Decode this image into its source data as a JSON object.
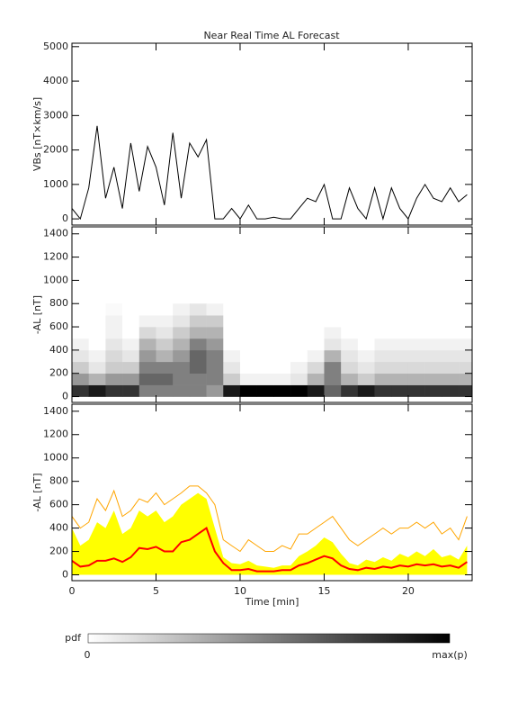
{
  "chart_data": [
    {
      "type": "line",
      "title": "Near Real Time AL Forecast",
      "ylabel": "VBs [nT×km/s]",
      "xlim": [
        0,
        23.8
      ],
      "xticks": [
        0,
        5,
        10,
        15,
        20
      ],
      "show_xtick_labels": false,
      "ylim": [
        -180,
        5100
      ],
      "yticks": [
        0,
        1000,
        2000,
        3000,
        4000,
        5000
      ],
      "color": "#000000",
      "x": [
        0,
        0.5,
        1,
        1.5,
        2,
        2.5,
        3,
        3.5,
        4,
        4.5,
        5,
        5.5,
        6,
        6.5,
        7,
        7.5,
        8,
        8.5,
        9,
        9.5,
        10,
        10.5,
        11,
        11.5,
        12,
        12.5,
        13,
        13.5,
        14,
        14.5,
        15,
        15.5,
        16,
        16.5,
        17,
        17.5,
        18,
        18.5,
        19,
        19.5,
        20,
        20.5,
        21,
        21.5,
        22,
        22.5,
        23,
        23.5
      ],
      "values": [
        300,
        0,
        900,
        2700,
        600,
        1500,
        300,
        2200,
        800,
        2100,
        1500,
        400,
        2500,
        600,
        2200,
        1800,
        2300,
        0,
        0,
        300,
        0,
        400,
        0,
        0,
        50,
        0,
        0,
        300,
        600,
        500,
        1000,
        0,
        0,
        900,
        300,
        0,
        900,
        0,
        900,
        300,
        0,
        600,
        1000,
        600,
        500,
        900,
        500,
        700
      ]
    },
    {
      "type": "heatmap",
      "ylabel": "-AL [nT]",
      "xlim": [
        0,
        23.8
      ],
      "xticks": [
        0,
        5,
        10,
        15,
        20
      ],
      "show_xtick_labels": false,
      "ylim": [
        -50,
        1460
      ],
      "yticks": [
        0,
        200,
        400,
        600,
        800,
        1000,
        1200,
        1400
      ],
      "x_bins": [
        0,
        1,
        2,
        3,
        4,
        5,
        6,
        7,
        8,
        9,
        10,
        11,
        12,
        13,
        14,
        15,
        16,
        17,
        18,
        19,
        20,
        21,
        22,
        23,
        24
      ],
      "y_bins": [
        0,
        100,
        200,
        300,
        400,
        500,
        600,
        700,
        800
      ],
      "z": [
        [
          0.8,
          0.9,
          0.8,
          0.8,
          0.5,
          0.5,
          0.5,
          0.5,
          0.4,
          0.9,
          1,
          1,
          1,
          1,
          0.9,
          0.6,
          0.8,
          0.9,
          0.8,
          0.8,
          0.8,
          0.8,
          0.8,
          0.8
        ],
        [
          0.4,
          0.3,
          0.4,
          0.4,
          0.6,
          0.6,
          0.5,
          0.5,
          0.5,
          0.2,
          0.05,
          0.05,
          0.05,
          0.1,
          0.3,
          0.5,
          0.3,
          0.2,
          0.3,
          0.3,
          0.3,
          0.3,
          0.3,
          0.3
        ],
        [
          0.2,
          0.1,
          0.2,
          0.2,
          0.5,
          0.5,
          0.5,
          0.6,
          0.5,
          0.1,
          0,
          0,
          0,
          0.05,
          0.15,
          0.5,
          0.15,
          0.1,
          0.15,
          0.15,
          0.15,
          0.15,
          0.15,
          0.15
        ],
        [
          0.1,
          0.05,
          0.15,
          0.1,
          0.4,
          0.3,
          0.4,
          0.6,
          0.5,
          0.05,
          0,
          0,
          0,
          0,
          0.05,
          0.3,
          0.1,
          0.05,
          0.1,
          0.1,
          0.1,
          0.1,
          0.1,
          0.1
        ],
        [
          0.05,
          0,
          0.1,
          0.05,
          0.3,
          0.2,
          0.3,
          0.5,
          0.4,
          0,
          0,
          0,
          0,
          0,
          0,
          0.1,
          0.05,
          0,
          0.05,
          0.05,
          0.05,
          0.05,
          0.05,
          0.05
        ],
        [
          0,
          0,
          0.05,
          0,
          0.15,
          0.1,
          0.2,
          0.3,
          0.3,
          0,
          0,
          0,
          0,
          0,
          0,
          0.05,
          0,
          0,
          0,
          0,
          0,
          0,
          0,
          0
        ],
        [
          0,
          0,
          0.05,
          0,
          0.05,
          0.05,
          0.1,
          0.2,
          0.2,
          0,
          0,
          0,
          0,
          0,
          0,
          0,
          0,
          0,
          0,
          0,
          0,
          0,
          0,
          0
        ],
        [
          0,
          0,
          0.02,
          0,
          0,
          0,
          0.05,
          0.1,
          0.05,
          0,
          0,
          0,
          0,
          0,
          0,
          0,
          0,
          0,
          0,
          0,
          0,
          0,
          0,
          0
        ]
      ],
      "colorbar": {
        "label": "pdf",
        "min_label": "0",
        "max_label": "max(p)"
      }
    },
    {
      "type": "line",
      "ylabel": "-AL [nT]",
      "xlabel": "Time [min]",
      "xlim": [
        0,
        23.8
      ],
      "xticks": [
        0,
        5,
        10,
        15,
        20
      ],
      "show_xtick_labels": true,
      "ylim": [
        -50,
        1460
      ],
      "yticks": [
        0,
        200,
        400,
        600,
        800,
        1000,
        1200,
        1400
      ],
      "x": [
        0,
        0.5,
        1,
        1.5,
        2,
        2.5,
        3,
        3.5,
        4,
        4.5,
        5,
        5.5,
        6,
        6.5,
        7,
        7.5,
        8,
        8.5,
        9,
        9.5,
        10,
        10.5,
        11,
        11.5,
        12,
        12.5,
        13,
        13.5,
        14,
        14.5,
        15,
        15.5,
        16,
        16.5,
        17,
        17.5,
        18,
        18.5,
        19,
        19.5,
        20,
        20.5,
        21,
        21.5,
        22,
        22.5,
        23,
        23.5
      ],
      "series": [
        {
          "color": "#ffff00",
          "fill": true,
          "values": [
            400,
            250,
            300,
            450,
            400,
            550,
            350,
            400,
            550,
            500,
            550,
            450,
            500,
            600,
            650,
            700,
            650,
            400,
            150,
            100,
            90,
            120,
            80,
            70,
            60,
            80,
            80,
            160,
            200,
            250,
            320,
            280,
            180,
            100,
            80,
            130,
            110,
            150,
            120,
            180,
            150,
            200,
            160,
            220,
            150,
            170,
            130,
            250
          ]
        },
        {
          "color": "#ffa500",
          "fill": false,
          "values": [
            500,
            400,
            450,
            650,
            550,
            720,
            500,
            550,
            650,
            620,
            700,
            600,
            650,
            700,
            760,
            760,
            700,
            600,
            300,
            250,
            200,
            300,
            250,
            200,
            200,
            250,
            220,
            350,
            350,
            400,
            450,
            500,
            400,
            300,
            250,
            300,
            350,
            400,
            350,
            400,
            400,
            450,
            400,
            450,
            350,
            400,
            300,
            500
          ]
        },
        {
          "color": "#ff0000",
          "fill": false,
          "values": [
            120,
            70,
            80,
            120,
            120,
            140,
            110,
            150,
            230,
            220,
            240,
            200,
            200,
            280,
            300,
            350,
            400,
            200,
            100,
            40,
            40,
            50,
            30,
            30,
            30,
            40,
            40,
            80,
            100,
            130,
            160,
            140,
            80,
            50,
            40,
            60,
            50,
            70,
            60,
            80,
            70,
            90,
            80,
            90,
            70,
            80,
            60,
            110
          ]
        }
      ]
    }
  ]
}
